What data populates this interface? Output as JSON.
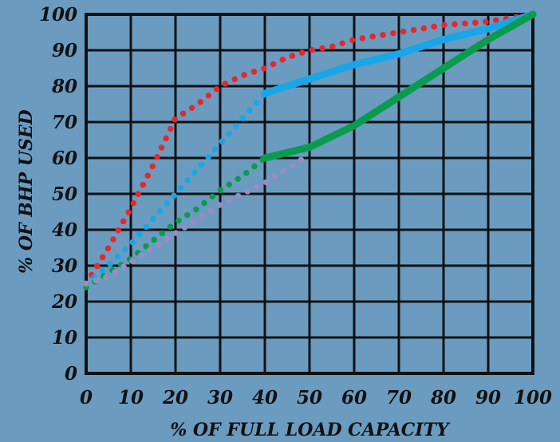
{
  "chart_data": {
    "type": "line",
    "xlabel": "% OF FULL LOAD CAPACITY",
    "ylabel": "% OF BHP USED",
    "xlim": [
      0,
      100
    ],
    "ylim": [
      0,
      100
    ],
    "x_ticks": [
      "0",
      "10",
      "20",
      "30",
      "40",
      "50",
      "60",
      "70",
      "80",
      "90",
      "100"
    ],
    "y_ticks": [
      "0",
      "10",
      "20",
      "30",
      "40",
      "50",
      "60",
      "70",
      "80",
      "90",
      "100"
    ],
    "grid": true,
    "series": [
      {
        "color": "#e8262b",
        "style": "dotted",
        "points": [
          [
            0,
            25
          ],
          [
            5,
            35
          ],
          [
            10,
            46
          ],
          [
            15,
            58
          ],
          [
            20,
            71
          ],
          [
            25,
            75
          ],
          [
            30,
            80
          ],
          [
            35,
            83
          ],
          [
            40,
            85
          ],
          [
            45,
            88
          ],
          [
            50,
            90
          ],
          [
            55,
            91
          ],
          [
            60,
            93
          ],
          [
            65,
            94
          ],
          [
            70,
            95
          ],
          [
            75,
            96
          ],
          [
            80,
            97
          ],
          [
            85,
            97.5
          ],
          [
            90,
            98
          ],
          [
            95,
            99
          ],
          [
            100,
            100
          ]
        ]
      },
      {
        "color": "#18a6e8",
        "style": "dotted",
        "points": [
          [
            0,
            25
          ],
          [
            5,
            30
          ],
          [
            10,
            36
          ],
          [
            15,
            43
          ],
          [
            20,
            50
          ],
          [
            25,
            57
          ],
          [
            30,
            64
          ],
          [
            35,
            71
          ],
          [
            40,
            78
          ]
        ]
      },
      {
        "color": "#18a6e8",
        "style": "solid",
        "points": [
          [
            40,
            78
          ],
          [
            50,
            82
          ],
          [
            60,
            86
          ],
          [
            70,
            89
          ],
          [
            80,
            93
          ],
          [
            90,
            96
          ],
          [
            100,
            100
          ]
        ]
      },
      {
        "color": "#0a9c4e",
        "style": "dotted",
        "points": [
          [
            0,
            24
          ],
          [
            5,
            28
          ],
          [
            10,
            32
          ],
          [
            15,
            37
          ],
          [
            20,
            42
          ],
          [
            25,
            46
          ],
          [
            30,
            51
          ],
          [
            35,
            55
          ],
          [
            40,
            60
          ]
        ]
      },
      {
        "color": "#0a9c4e",
        "style": "solid",
        "points": [
          [
            40,
            60
          ],
          [
            50,
            63
          ],
          [
            60,
            69
          ],
          [
            70,
            77
          ],
          [
            80,
            85
          ],
          [
            90,
            93
          ],
          [
            100,
            100
          ]
        ]
      },
      {
        "color": "#9a8bc4",
        "style": "dotted",
        "points": [
          [
            0,
            25
          ],
          [
            5,
            27
          ],
          [
            10,
            31
          ],
          [
            15,
            35
          ],
          [
            20,
            39
          ],
          [
            25,
            43
          ],
          [
            30,
            47
          ],
          [
            35,
            50
          ],
          [
            40,
            53
          ],
          [
            45,
            57
          ],
          [
            50,
            61
          ]
        ]
      }
    ]
  }
}
